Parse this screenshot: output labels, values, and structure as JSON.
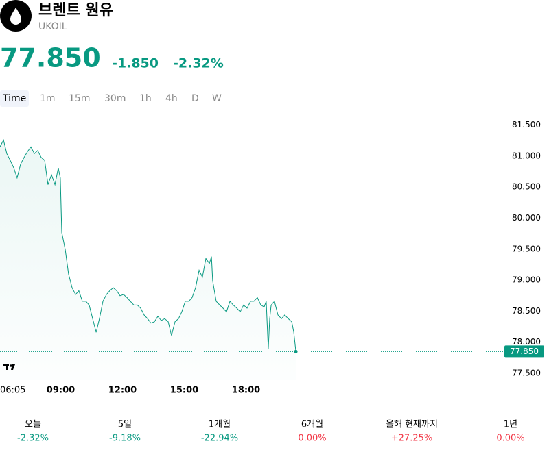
{
  "header": {
    "title": "브렌트 원유",
    "symbol": "UKOIL",
    "price": "77.850",
    "change": "-1.850",
    "change_percent": "-2.32%"
  },
  "tabs": [
    "Time",
    "1m",
    "15m",
    "30m",
    "1h",
    "4h",
    "D",
    "W"
  ],
  "chart_data": {
    "type": "line",
    "color": "#089981",
    "x": [
      6.05,
      6.22,
      6.38,
      6.55,
      6.72,
      6.88,
      7.05,
      7.22,
      7.38,
      7.55,
      7.72,
      7.88,
      8.05,
      8.22,
      8.38,
      8.55,
      8.72,
      8.88,
      8.98,
      9.05,
      9.22,
      9.38,
      9.55,
      9.72,
      9.88,
      10.05,
      10.22,
      10.38,
      10.55,
      10.72,
      10.88,
      11.05,
      11.22,
      11.38,
      11.55,
      11.72,
      11.88,
      12.05,
      12.22,
      12.38,
      12.55,
      12.72,
      12.88,
      13.05,
      13.22,
      13.38,
      13.55,
      13.72,
      13.88,
      14.05,
      14.22,
      14.38,
      14.55,
      14.72,
      14.88,
      15.05,
      15.22,
      15.38,
      15.55,
      15.72,
      15.88,
      16.05,
      16.22,
      16.32,
      16.38,
      16.55,
      16.72,
      16.88,
      17.05,
      17.22,
      17.38,
      17.55,
      17.72,
      17.88,
      18.05,
      18.22,
      18.38,
      18.55,
      18.72,
      18.88,
      18.98,
      19.08,
      19.15,
      19.22,
      19.38,
      19.55,
      19.72,
      19.88,
      20.05,
      20.22,
      20.32,
      20.42
    ],
    "values": [
      81.15,
      81.26,
      81.04,
      80.93,
      80.81,
      80.65,
      80.87,
      80.98,
      81.07,
      81.15,
      81.04,
      81.09,
      80.98,
      80.93,
      80.54,
      80.7,
      80.54,
      80.81,
      80.65,
      79.77,
      79.49,
      79.1,
      78.88,
      78.77,
      78.83,
      78.66,
      78.66,
      78.6,
      78.38,
      78.16,
      78.38,
      78.66,
      78.77,
      78.83,
      78.88,
      78.83,
      78.75,
      78.77,
      78.72,
      78.66,
      78.6,
      78.6,
      78.55,
      78.44,
      78.38,
      78.31,
      78.33,
      78.42,
      78.35,
      78.38,
      78.33,
      78.11,
      78.33,
      78.38,
      78.49,
      78.66,
      78.66,
      78.72,
      78.88,
      79.16,
      79.05,
      79.35,
      79.27,
      79.38,
      78.99,
      78.66,
      78.6,
      78.55,
      78.49,
      78.66,
      78.6,
      78.55,
      78.49,
      78.6,
      78.55,
      78.66,
      78.66,
      78.72,
      78.6,
      78.57,
      78.66,
      77.89,
      78.38,
      78.6,
      78.66,
      78.44,
      78.38,
      78.44,
      78.38,
      78.33,
      78.16,
      77.85
    ],
    "xlim": [
      6.05,
      30.55
    ],
    "xticks": [
      {
        "value": 6.083,
        "label": "06:05"
      },
      {
        "value": 9,
        "label": "09:00"
      },
      {
        "value": 12,
        "label": "12:00"
      },
      {
        "value": 15,
        "label": "15:00"
      },
      {
        "value": 18,
        "label": "18:00"
      }
    ],
    "ylim": [
      77.39,
      81.75
    ],
    "yticks": [
      {
        "value": 77.5,
        "label": "77.500"
      },
      {
        "value": 78,
        "label": "78.000"
      },
      {
        "value": 78.5,
        "label": "78.500"
      },
      {
        "value": 79,
        "label": "79.000"
      },
      {
        "value": 79.5,
        "label": "79.500"
      },
      {
        "value": 80,
        "label": "80.000"
      },
      {
        "value": 80.5,
        "label": "80.500"
      },
      {
        "value": 81,
        "label": "81.000"
      },
      {
        "value": 81.5,
        "label": "81.500"
      }
    ]
  },
  "periods": [
    {
      "label": "오늘",
      "change": "-2.32%",
      "color": "#089981"
    },
    {
      "label": "5일",
      "change": "-9.18%",
      "color": "#089981"
    },
    {
      "label": "1개월",
      "change": "-22.94%",
      "color": "#089981"
    },
    {
      "label": "6개월",
      "change": "0.00%",
      "color": "#f23645"
    },
    {
      "label": "올해 현재까지",
      "change": "+27.25%",
      "color": "#f23645"
    },
    {
      "label": "1년",
      "change": "0.00%",
      "color": "#f23645"
    }
  ]
}
